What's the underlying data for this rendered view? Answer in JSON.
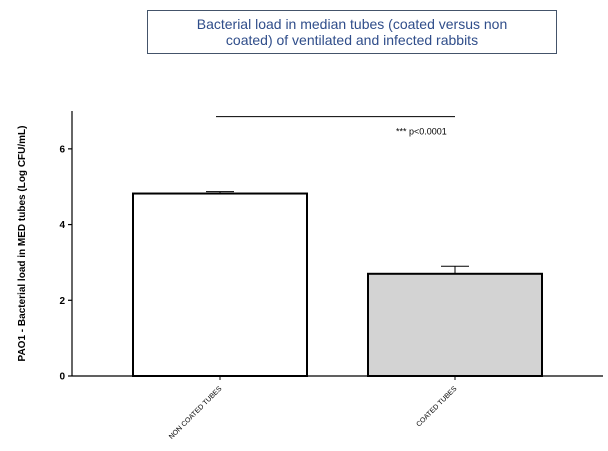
{
  "chart_data": {
    "type": "bar",
    "title_lines": [
      "Bacterial load in median tubes (coated versus non",
      "coated) of ventilated and infected rabbits"
    ],
    "categories": [
      "NON COATED TUBES",
      "COATED TUBES"
    ],
    "values": [
      4.82,
      2.7
    ],
    "error_upper": [
      4.87,
      2.9
    ],
    "bar_colors": [
      "#ffffff",
      "#d3d3d3"
    ],
    "ylabel": "PAO1 - Bacterial load in  MED tubes (Log CFU/mL)",
    "xlabel": "",
    "ylim": [
      0,
      7
    ],
    "yticks": [
      0,
      2,
      4,
      6
    ],
    "grid": false,
    "annotation": {
      "text": "*** p<0.0001",
      "bracket_y": 6.85
    }
  }
}
